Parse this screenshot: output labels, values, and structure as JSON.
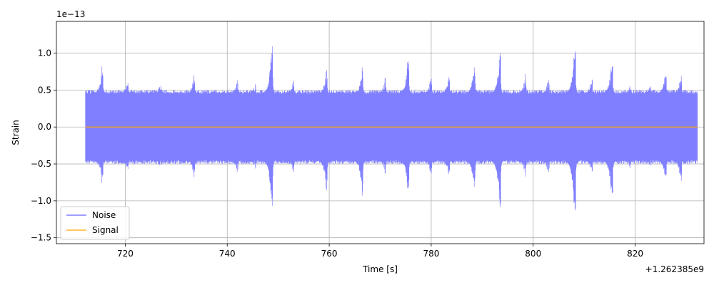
{
  "chart_data": {
    "type": "line",
    "xlabel": "Time [s]",
    "ylabel": "Strain",
    "y_exponent_label": "1e−13",
    "x_offset_label": "+1.262385e9",
    "xlim": [
      706.5,
      833.5
    ],
    "ylim": [
      -1.58,
      1.43
    ],
    "x_ticks": [
      720,
      740,
      760,
      780,
      800,
      820
    ],
    "x_tick_labels": [
      "720",
      "740",
      "760",
      "780",
      "800",
      "820"
    ],
    "y_ticks": [
      -1.5,
      -1.0,
      -0.5,
      0.0,
      0.5,
      1.0
    ],
    "y_tick_labels": [
      "−1.5",
      "−1.0",
      "−0.5",
      "0.0",
      "0.5",
      "1.0"
    ],
    "grid": true,
    "legend_position": "lower-left",
    "series": [
      {
        "name": "Noise",
        "color": "#7f7fff",
        "x_range": [
          712.2,
          832.2
        ],
        "base_amplitude": 0.5,
        "transients": [
          {
            "t": 715.5,
            "peak": 0.93,
            "trough": -0.85
          },
          {
            "t": 720.5,
            "peak": 0.72,
            "trough": -0.68
          },
          {
            "t": 727.0,
            "peak": 0.65,
            "trough": -0.6
          },
          {
            "t": 733.5,
            "peak": 0.72,
            "trough": -0.7
          },
          {
            "t": 742.0,
            "peak": 0.68,
            "trough": -0.65
          },
          {
            "t": 745.5,
            "peak": 0.62,
            "trough": -0.6
          },
          {
            "t": 748.8,
            "peak": 1.28,
            "trough": -1.25
          },
          {
            "t": 753.0,
            "peak": 0.7,
            "trough": -0.68
          },
          {
            "t": 759.5,
            "peak": 0.85,
            "trough": -0.95
          },
          {
            "t": 766.5,
            "peak": 0.88,
            "trough": -1.02
          },
          {
            "t": 771.0,
            "peak": 0.7,
            "trough": -0.66
          },
          {
            "t": 775.5,
            "peak": 1.07,
            "trough": -1.0
          },
          {
            "t": 780.0,
            "peak": 0.75,
            "trough": -0.72
          },
          {
            "t": 783.5,
            "peak": 0.8,
            "trough": -0.75
          },
          {
            "t": 788.5,
            "peak": 0.95,
            "trough": -0.95
          },
          {
            "t": 793.5,
            "peak": 1.15,
            "trough": -1.25
          },
          {
            "t": 798.5,
            "peak": 0.75,
            "trough": -0.7
          },
          {
            "t": 803.0,
            "peak": 0.68,
            "trough": -0.65
          },
          {
            "t": 808.2,
            "peak": 1.3,
            "trough": -1.45
          },
          {
            "t": 811.5,
            "peak": 0.75,
            "trough": -0.7
          },
          {
            "t": 815.5,
            "peak": 1.05,
            "trough": -1.15
          },
          {
            "t": 819.0,
            "peak": 0.6,
            "trough": -0.6
          },
          {
            "t": 823.0,
            "peak": 0.62,
            "trough": -0.58
          },
          {
            "t": 826.0,
            "peak": 0.82,
            "trough": -0.78
          },
          {
            "t": 829.0,
            "peak": 0.75,
            "trough": -0.8
          }
        ]
      },
      {
        "name": "Signal",
        "color": "#ffa500",
        "x": [
          712.2,
          832.2
        ],
        "y": [
          0.0,
          0.0
        ]
      }
    ]
  }
}
